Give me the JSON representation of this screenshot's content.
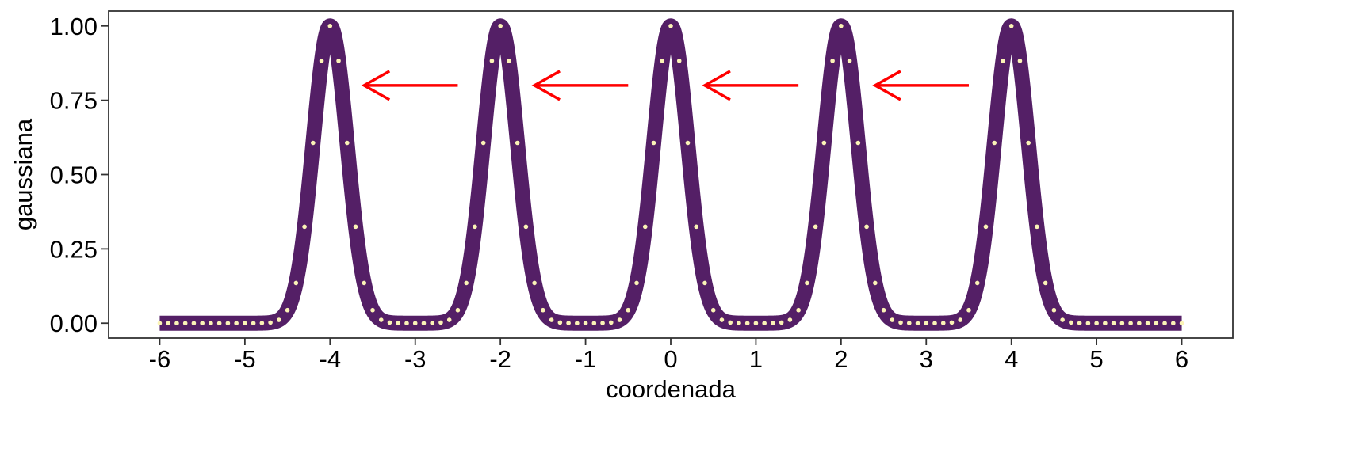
{
  "chart_data": {
    "type": "line",
    "title": "",
    "xlabel": "coordenada",
    "ylabel": "gaussiana",
    "xlim": [
      -6.6,
      6.6
    ],
    "ylim": [
      -0.05,
      1.05
    ],
    "x_ticks": [
      -6,
      -5,
      -4,
      -3,
      -2,
      -1,
      0,
      1,
      2,
      3,
      4,
      5,
      6
    ],
    "x_tick_labels": [
      "-6",
      "-5",
      "-4",
      "-3",
      "-2",
      "-1",
      "0",
      "1",
      "2",
      "3",
      "4",
      "5",
      "6"
    ],
    "y_ticks": [
      0,
      0.25,
      0.5,
      0.75,
      1.0
    ],
    "y_tick_labels": [
      "0.00",
      "0.25",
      "0.50",
      "0.75",
      "1.00"
    ],
    "grid": false,
    "legend": "none",
    "series": [
      {
        "kind": "thick-line",
        "color": "#541f66",
        "function": "sum of gaussians exp(-(x-c)^2/0.08)",
        "centers": [
          -4,
          -2,
          0,
          2,
          4
        ],
        "x_range": [
          -6,
          6
        ]
      },
      {
        "kind": "points",
        "color": "#fbf3b6",
        "centers": [
          -4,
          -2,
          0,
          2,
          4
        ],
        "x_range": [
          -6,
          6
        ],
        "x_step": 0.1
      }
    ],
    "arrows": [
      {
        "from": [
          -2.5,
          0.8
        ],
        "to": [
          -3.6,
          0.8
        ]
      },
      {
        "from": [
          -0.5,
          0.8
        ],
        "to": [
          -1.6,
          0.8
        ]
      },
      {
        "from": [
          1.5,
          0.8
        ],
        "to": [
          0.4,
          0.8
        ]
      },
      {
        "from": [
          3.5,
          0.8
        ],
        "to": [
          2.4,
          0.8
        ]
      }
    ],
    "arrow_color": "#ff0000"
  }
}
